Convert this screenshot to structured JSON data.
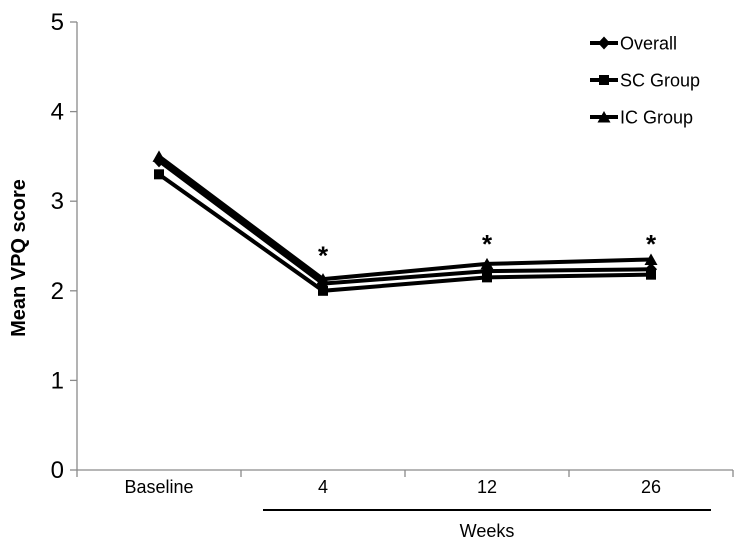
{
  "figure": {
    "background": "#ffffff"
  },
  "chart_data": {
    "type": "line",
    "categories": [
      "Baseline",
      "4",
      "12",
      "26"
    ],
    "series": [
      {
        "name": "Overall",
        "marker": "diamond",
        "color": "#000000",
        "values": [
          3.45,
          2.08,
          2.22,
          2.24
        ]
      },
      {
        "name": "SC Group",
        "marker": "square",
        "color": "#000000",
        "values": [
          3.3,
          2.0,
          2.15,
          2.18
        ]
      },
      {
        "name": "IC Group",
        "marker": "triangle",
        "color": "#000000",
        "values": [
          3.5,
          2.13,
          2.3,
          2.35
        ]
      }
    ],
    "xlabel": "Weeks",
    "ylabel": "Mean VPQ score",
    "ylim": [
      0,
      5
    ],
    "yticks": [
      0,
      1,
      2,
      3,
      4,
      5
    ],
    "grid": false,
    "legend_position": "top-right",
    "legend": [
      "Overall",
      "SC Group",
      "IC Group"
    ],
    "annotations": [
      {
        "text": "*",
        "category": "4",
        "value": 2.46
      },
      {
        "text": "*",
        "category": "12",
        "value": 2.59
      },
      {
        "text": "*",
        "category": "26",
        "value": 2.59
      }
    ],
    "xlabel_underline": {
      "from_category": "4",
      "to_category": "26"
    },
    "axis_color": "#8a8a8a",
    "line_color": "#000000"
  }
}
